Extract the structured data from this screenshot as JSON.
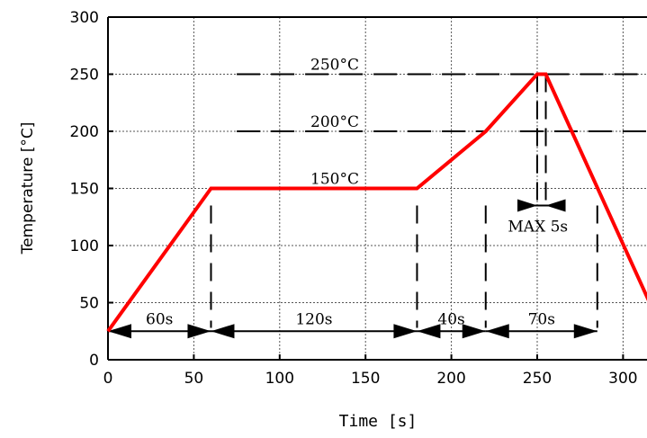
{
  "chart_data": {
    "type": "line",
    "title": "",
    "xlabel": "Time  [s]",
    "ylabel": "Temperature [°C]",
    "xlim": [
      0,
      315
    ],
    "ylim": [
      0,
      300
    ],
    "x_ticks": [
      0,
      50,
      100,
      150,
      200,
      250,
      300
    ],
    "y_ticks": [
      0,
      50,
      100,
      150,
      200,
      250,
      300
    ],
    "grid": true,
    "series": [
      {
        "color": "#ff0000",
        "points": [
          [
            0,
            25
          ],
          [
            60,
            150
          ],
          [
            180,
            150
          ],
          [
            220,
            200
          ],
          [
            250,
            250
          ],
          [
            255,
            250
          ],
          [
            320,
            35
          ]
        ]
      }
    ],
    "level_labels": [
      {
        "text": "250°C",
        "y": 250
      },
      {
        "text": "200°C",
        "y": 200
      },
      {
        "text": "150°C",
        "y": 150
      }
    ],
    "level_lines": [
      {
        "y": 250,
        "x_from": 75,
        "x_to": 250
      },
      {
        "y": 200,
        "x_from": 75,
        "x_to": 220
      },
      {
        "y": 150,
        "x_from": 75,
        "x_to": 180
      }
    ],
    "level_lines_right": [
      {
        "y": 250,
        "x_from": 255,
        "x_to": 315
      },
      {
        "y": 200,
        "x_from": 240,
        "x_to": 315
      }
    ],
    "phase_markers": [
      60,
      180,
      220,
      285
    ],
    "phase_arrow_y": 25,
    "phases": [
      {
        "label": "60s",
        "x_from": 0,
        "x_to": 60
      },
      {
        "label": "120s",
        "x_from": 60,
        "x_to": 180
      },
      {
        "label": "40s",
        "x_from": 180,
        "x_to": 220
      },
      {
        "label": "70s",
        "x_from": 220,
        "x_to": 285
      }
    ],
    "peak_markers": [
      250,
      255
    ],
    "peak_marker_range": [
      180,
      260
    ],
    "peak_annotation": {
      "label": "MAX 5s",
      "x_from": 250,
      "x_to": 255,
      "y": 135
    }
  }
}
